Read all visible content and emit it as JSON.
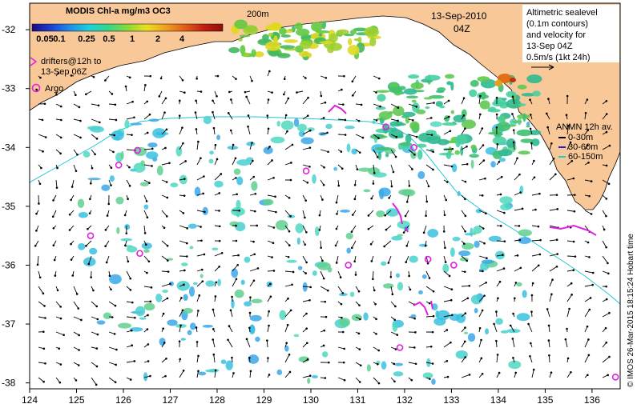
{
  "colorbar": {
    "title": "MODIS Chl-a mg/m3 OC3",
    "ticks": [
      "0.05",
      "0.1",
      "0.25",
      "0.5",
      "1",
      "2",
      "4"
    ],
    "colors": [
      "#1a0a80",
      "#1f3fd1",
      "#1f8fe6",
      "#1fd0d8",
      "#37d48a",
      "#8ad83a",
      "#e8e020",
      "#f0a020",
      "#e06018",
      "#c02010",
      "#901008"
    ]
  },
  "contour_label": "200m",
  "date": {
    "day": "13-Sep-2010",
    "time": "04Z"
  },
  "altimetry_note": {
    "lines": [
      "Altimetric sealevel",
      "(0.1m contours)",
      "and velocity for",
      "13-Sep 04Z",
      "0.5m/s (1kt 24h)"
    ]
  },
  "drifters": {
    "lines": [
      "drifters@12h to",
      "13-Sep 06Z"
    ],
    "color": "#e020e0"
  },
  "argo": {
    "label": "Argo",
    "color": "#e020e0",
    "floats": [
      [
        125.3,
        -35.5
      ],
      [
        125.9,
        -34.3
      ],
      [
        126.3,
        -34.05
      ],
      [
        126.35,
        -35.8
      ],
      [
        129.9,
        -34.4
      ],
      [
        130.8,
        -36.0
      ],
      [
        131.6,
        -33.65
      ],
      [
        132.2,
        -34.0
      ],
      [
        132.5,
        -35.9
      ],
      [
        133.05,
        -36.0
      ],
      [
        131.9,
        -37.4
      ],
      [
        136.5,
        -37.9
      ]
    ]
  },
  "anmn": {
    "title": "ANMN 12h av.",
    "items": [
      {
        "label": "0-30m",
        "color": "#000000"
      },
      {
        "label": "30-60m",
        "color": "#2020d0"
      },
      {
        "label": "60-150m",
        "color": "#20c8d0"
      }
    ]
  },
  "credit": "© IMOS 26-Mar-2015 18:15:24 Hobart time",
  "axes": {
    "x_ticks": [
      "124",
      "125",
      "126",
      "127",
      "128",
      "129",
      "130",
      "131",
      "132",
      "133",
      "134",
      "135",
      "136"
    ],
    "y_ticks": [
      "-32",
      "-33",
      "-34",
      "-35",
      "-36",
      "-37",
      "-38"
    ],
    "lon_range": [
      124,
      136.6
    ],
    "lat_range": [
      -38.1,
      -31.55
    ]
  },
  "colors": {
    "land": "#f8c898",
    "ocean": "#ffffff",
    "contour": "#20c8d0",
    "arrow": "#000000"
  }
}
